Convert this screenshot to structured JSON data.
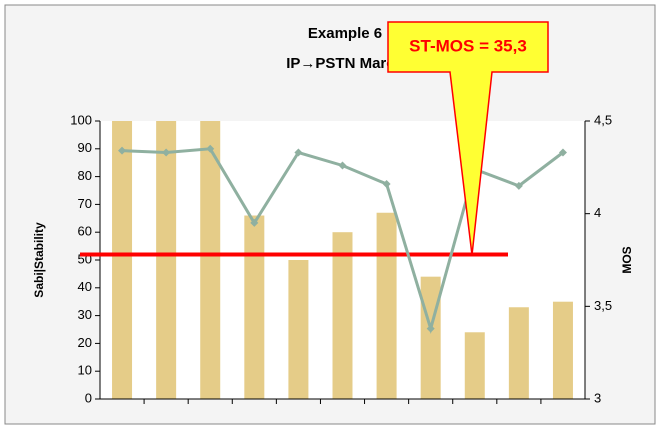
{
  "chart_data": {
    "type": "bar_line",
    "title": "Example 6",
    "subtitle": "IP→PSTN March",
    "y_label": "Sabi|Stability",
    "y2_label": "MOS",
    "annotation": "ST-MOS = 35,3",
    "categories": [
      null,
      null,
      null,
      null,
      null,
      null,
      null,
      null,
      null,
      null,
      null
    ],
    "series": [
      {
        "name": "Stability",
        "color": "#e5cc88",
        "values": [
          100,
          100,
          100,
          66,
          50,
          60,
          67,
          44,
          24,
          33,
          35
        ]
      },
      {
        "name": "MOS",
        "color": "#8fb0a0",
        "axis": "y2",
        "values": [
          4.34,
          4.33,
          4.35,
          3.95,
          4.33,
          4.26,
          4.16,
          3.38,
          4.24,
          4.15,
          4.33
        ]
      }
    ],
    "reference_line": {
      "value": 52,
      "color": "#ff0000"
    },
    "ylim": [
      0,
      100
    ],
    "yticks": [
      0,
      10,
      20,
      30,
      40,
      50,
      60,
      70,
      80,
      90,
      100
    ],
    "y2lim": [
      3,
      4.5
    ],
    "y2ticks": [
      3,
      {
        "value": 3.5,
        "label": "3,5"
      },
      4,
      {
        "value": 4.5,
        "label": "4,5"
      }
    ]
  }
}
